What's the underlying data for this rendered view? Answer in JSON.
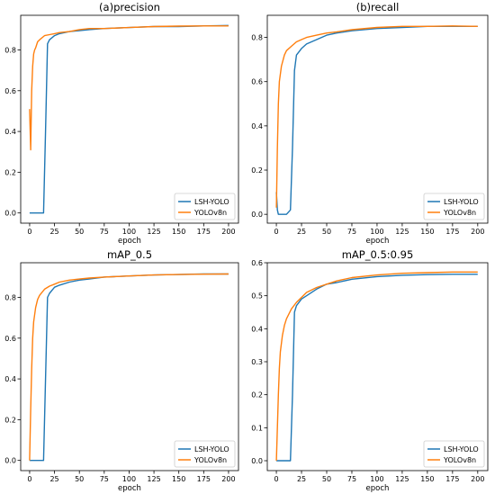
{
  "figure": {
    "colors": {
      "lsh": "#1f77b4",
      "yolo": "#ff7f0e"
    },
    "legend_labels": [
      "LSH-YOLO",
      "YOLOv8n"
    ]
  },
  "chart_data": [
    {
      "type": "line",
      "title": "(a)precision",
      "xlabel": "epoch",
      "ylabel": "",
      "xlim": [
        -9,
        210
      ],
      "ylim": [
        -0.05,
        0.97
      ],
      "xticks": [
        0,
        25,
        50,
        75,
        100,
        125,
        150,
        175,
        200
      ],
      "yticks": [
        0.0,
        0.2,
        0.4,
        0.6,
        0.8
      ],
      "ytick_labels": [
        "0.0",
        "0.2",
        "0.4",
        "0.6",
        "0.8"
      ],
      "legend": "bottom-right",
      "grid": false,
      "series": [
        {
          "name": "LSH-YOLO",
          "x": [
            0,
            5,
            10,
            14,
            16,
            18,
            20,
            25,
            30,
            40,
            50,
            60,
            75,
            100,
            125,
            150,
            175,
            200
          ],
          "y": [
            0.0,
            0.0,
            0.0,
            0.0,
            0.4,
            0.83,
            0.85,
            0.87,
            0.88,
            0.89,
            0.895,
            0.9,
            0.905,
            0.91,
            0.915,
            0.915,
            0.918,
            0.92
          ]
        },
        {
          "name": "YOLOv8n",
          "x": [
            0,
            1,
            2,
            3,
            4,
            5,
            6,
            8,
            10,
            15,
            20,
            25,
            30,
            40,
            50,
            60,
            75,
            100,
            125,
            150,
            175,
            200
          ],
          "y": [
            0.51,
            0.31,
            0.6,
            0.72,
            0.78,
            0.8,
            0.81,
            0.84,
            0.85,
            0.87,
            0.875,
            0.88,
            0.885,
            0.89,
            0.9,
            0.905,
            0.905,
            0.91,
            0.915,
            0.917,
            0.918,
            0.918
          ]
        }
      ]
    },
    {
      "type": "line",
      "title": "(b)recall",
      "xlabel": "epoch",
      "ylabel": "",
      "xlim": [
        -9,
        210
      ],
      "ylim": [
        -0.04,
        0.9
      ],
      "xticks": [
        0,
        25,
        50,
        75,
        100,
        125,
        150,
        175,
        200
      ],
      "yticks": [
        0.0,
        0.2,
        0.4,
        0.6,
        0.8
      ],
      "ytick_labels": [
        "0.0",
        "0.2",
        "0.4",
        "0.6",
        "0.8"
      ],
      "legend": "bottom-right",
      "grid": false,
      "series": [
        {
          "name": "LSH-YOLO",
          "x": [
            0,
            1,
            2,
            5,
            10,
            14,
            16,
            18,
            20,
            25,
            30,
            40,
            50,
            60,
            75,
            100,
            125,
            150,
            175,
            200
          ],
          "y": [
            0.1,
            0.02,
            0.0,
            0.0,
            0.0,
            0.02,
            0.3,
            0.65,
            0.72,
            0.75,
            0.77,
            0.79,
            0.81,
            0.82,
            0.83,
            0.84,
            0.845,
            0.85,
            0.85,
            0.85
          ]
        },
        {
          "name": "YOLOv8n",
          "x": [
            0,
            1,
            2,
            3,
            5,
            8,
            10,
            15,
            20,
            25,
            30,
            40,
            50,
            60,
            75,
            100,
            125,
            150,
            175,
            200
          ],
          "y": [
            0.03,
            0.3,
            0.5,
            0.6,
            0.67,
            0.72,
            0.74,
            0.76,
            0.78,
            0.79,
            0.8,
            0.81,
            0.82,
            0.825,
            0.835,
            0.845,
            0.85,
            0.85,
            0.852,
            0.85
          ]
        }
      ]
    },
    {
      "type": "line",
      "title": "mAP_0.5",
      "xlabel": "epoch",
      "ylabel": "",
      "xlim": [
        -9,
        210
      ],
      "ylim": [
        -0.05,
        0.97
      ],
      "xticks": [
        0,
        25,
        50,
        75,
        100,
        125,
        150,
        175,
        200
      ],
      "yticks": [
        0.0,
        0.2,
        0.4,
        0.6,
        0.8
      ],
      "ytick_labels": [
        "0.0",
        "0.2",
        "0.4",
        "0.6",
        "0.8"
      ],
      "legend": "bottom-right",
      "grid": false,
      "series": [
        {
          "name": "LSH-YOLO",
          "x": [
            0,
            5,
            10,
            14,
            16,
            18,
            20,
            25,
            30,
            40,
            50,
            60,
            75,
            100,
            125,
            150,
            175,
            200
          ],
          "y": [
            0.0,
            0.0,
            0.0,
            0.0,
            0.4,
            0.8,
            0.82,
            0.85,
            0.86,
            0.875,
            0.885,
            0.89,
            0.9,
            0.905,
            0.91,
            0.912,
            0.915,
            0.915
          ]
        },
        {
          "name": "YOLOv8n",
          "x": [
            0,
            1,
            2,
            3,
            4,
            6,
            8,
            10,
            15,
            20,
            25,
            30,
            40,
            50,
            60,
            75,
            100,
            125,
            150,
            175,
            200
          ],
          "y": [
            0.0,
            0.25,
            0.45,
            0.6,
            0.68,
            0.75,
            0.79,
            0.81,
            0.84,
            0.855,
            0.865,
            0.875,
            0.885,
            0.89,
            0.895,
            0.9,
            0.905,
            0.91,
            0.912,
            0.914,
            0.915
          ]
        }
      ]
    },
    {
      "type": "line",
      "title": "mAP_0.5:0.95",
      "xlabel": "epoch",
      "ylabel": "",
      "xlim": [
        -9,
        210
      ],
      "ylim": [
        -0.03,
        0.6
      ],
      "xticks": [
        0,
        25,
        50,
        75,
        100,
        125,
        150,
        175,
        200
      ],
      "yticks": [
        0.0,
        0.1,
        0.2,
        0.3,
        0.4,
        0.5,
        0.6
      ],
      "ytick_labels": [
        "0.0",
        "0.1",
        "0.2",
        "0.3",
        "0.4",
        "0.5",
        "0.6"
      ],
      "legend": "bottom-right",
      "grid": false,
      "series": [
        {
          "name": "LSH-YOLO",
          "x": [
            0,
            5,
            10,
            14,
            16,
            18,
            20,
            25,
            30,
            40,
            50,
            60,
            75,
            100,
            125,
            150,
            175,
            200
          ],
          "y": [
            0.0,
            0.0,
            0.0,
            0.0,
            0.2,
            0.45,
            0.47,
            0.49,
            0.5,
            0.52,
            0.535,
            0.54,
            0.55,
            0.558,
            0.562,
            0.564,
            0.565,
            0.565
          ]
        },
        {
          "name": "YOLOv8n",
          "x": [
            0,
            1,
            2,
            3,
            4,
            6,
            8,
            10,
            15,
            20,
            25,
            30,
            40,
            50,
            60,
            75,
            100,
            125,
            150,
            175,
            200
          ],
          "y": [
            0.0,
            0.1,
            0.2,
            0.28,
            0.33,
            0.38,
            0.41,
            0.43,
            0.46,
            0.48,
            0.495,
            0.51,
            0.525,
            0.535,
            0.545,
            0.555,
            0.563,
            0.568,
            0.57,
            0.572,
            0.572
          ]
        }
      ]
    }
  ]
}
